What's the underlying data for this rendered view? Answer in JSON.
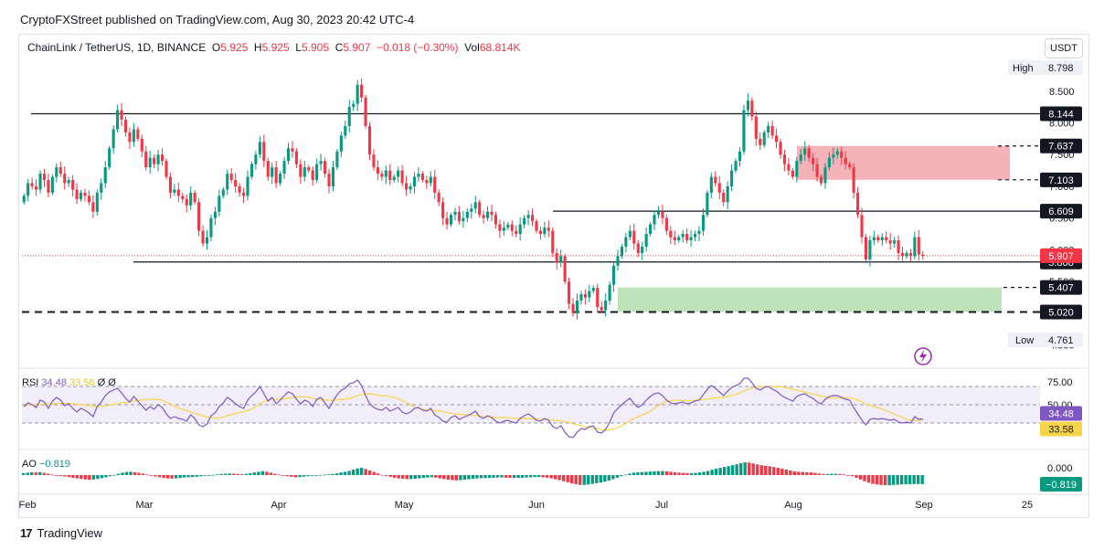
{
  "credit": "CryptoFXStreet published on TradingView.com, Aug 30, 2023 20:42 UTC-4",
  "legend": {
    "symbol": "ChainLink / TetherUS, 1D, BINANCE",
    "o_label": "O",
    "o": "5.925",
    "h_label": "H",
    "h": "5.925",
    "l_label": "L",
    "l": "5.905",
    "c_label": "C",
    "c": "5.907",
    "change": "−0.018 (−0.30%)",
    "vol_label": "Vol",
    "vol": "68.814K"
  },
  "currency": "USDT",
  "rsi_legend": {
    "name": "RSI",
    "v1": "34.48",
    "v2": "33.58",
    "v3": "Ø",
    "v4": "Ø"
  },
  "ao_legend": {
    "name": "AO",
    "v1": "−0.819"
  },
  "branding": "TradingView",
  "colors": {
    "up": "#089981",
    "down": "#f23645",
    "rsi": "#7e57c2",
    "rsi_ma": "#f5d547",
    "resistance_zone": "#f2a6ab",
    "support_zone": "#b7e0b4"
  },
  "chart_data": {
    "type": "candlestick",
    "instrument": "ChainLink / TetherUS",
    "timeframe": "1D",
    "exchange": "BINANCE",
    "price_axis": {
      "ticks": [
        "8.500",
        "8.000",
        "7.500",
        "7.000",
        "6.500",
        "6.000",
        "5.500",
        "5.000",
        "4.500"
      ],
      "high_label": "High",
      "high": "8.798",
      "low_label": "Low",
      "low": "4.761",
      "current": "5.907"
    },
    "x_axis": {
      "ticks": [
        "Feb",
        "Mar",
        "Apr",
        "May",
        "Jun",
        "Jul",
        "Aug",
        "Sep",
        "25"
      ]
    },
    "levels": [
      {
        "value": 8.144,
        "label": "8.144",
        "style": "solid"
      },
      {
        "value": 7.637,
        "label": "7.637",
        "style": "dashed"
      },
      {
        "value": 7.103,
        "label": "7.103",
        "style": "dashed"
      },
      {
        "value": 6.609,
        "label": "6.609",
        "style": "solid"
      },
      {
        "value": 5.808,
        "label": "5.808",
        "style": "solid"
      },
      {
        "value": 5.407,
        "label": "5.407",
        "style": "dashed"
      },
      {
        "value": 5.02,
        "label": "5.020",
        "style": "dashed"
      }
    ],
    "zones": [
      {
        "type": "resistance",
        "from": 7.103,
        "to": 7.637
      },
      {
        "type": "support",
        "from": 5.02,
        "to": 5.407
      }
    ],
    "closes": [
      6.85,
      7.05,
      7.0,
      6.95,
      7.2,
      7.1,
      6.9,
      7.15,
      7.3,
      7.2,
      7.05,
      7.1,
      6.95,
      6.8,
      6.9,
      6.85,
      6.75,
      6.6,
      6.9,
      7.05,
      7.3,
      7.6,
      7.9,
      8.2,
      8.05,
      7.85,
      7.7,
      7.9,
      7.75,
      7.55,
      7.3,
      7.45,
      7.35,
      7.5,
      7.4,
      7.15,
      6.9,
      6.95,
      6.85,
      6.8,
      6.7,
      6.9,
      6.75,
      6.3,
      6.1,
      6.2,
      6.5,
      6.6,
      6.85,
      6.95,
      7.2,
      7.1,
      7.0,
      6.9,
      6.85,
      7.15,
      7.35,
      7.5,
      7.7,
      7.4,
      7.15,
      7.3,
      7.05,
      7.2,
      7.4,
      7.6,
      7.55,
      7.35,
      7.15,
      7.3,
      7.25,
      7.1,
      7.35,
      7.4,
      7.2,
      7.0,
      7.3,
      7.55,
      7.8,
      7.95,
      8.25,
      8.3,
      8.6,
      8.4,
      7.95,
      7.5,
      7.3,
      7.2,
      7.15,
      7.25,
      7.1,
      7.15,
      7.25,
      7.05,
      6.95,
      7.0,
      7.15,
      7.2,
      7.1,
      7.05,
      7.15,
      6.9,
      6.75,
      6.5,
      6.4,
      6.55,
      6.6,
      6.45,
      6.5,
      6.6,
      6.65,
      6.75,
      6.55,
      6.5,
      6.6,
      6.55,
      6.4,
      6.3,
      6.35,
      6.4,
      6.3,
      6.25,
      6.4,
      6.5,
      6.55,
      6.45,
      6.3,
      6.25,
      6.35,
      6.3,
      5.95,
      5.8,
      5.9,
      5.5,
      5.15,
      5.0,
      5.2,
      5.3,
      5.25,
      5.35,
      5.4,
      5.1,
      5.05,
      5.2,
      5.45,
      5.75,
      5.9,
      6.05,
      6.2,
      6.3,
      6.1,
      5.95,
      6.05,
      6.25,
      6.4,
      6.55,
      6.6,
      6.5,
      6.3,
      6.2,
      6.15,
      6.2,
      6.25,
      6.15,
      6.2,
      6.25,
      6.3,
      6.55,
      6.9,
      7.15,
      7.05,
      6.9,
      6.75,
      7.0,
      7.25,
      7.4,
      7.55,
      8.2,
      8.35,
      8.1,
      7.75,
      7.65,
      7.85,
      7.95,
      7.8,
      7.7,
      7.5,
      7.35,
      7.25,
      7.15,
      7.4,
      7.5,
      7.6,
      7.45,
      7.35,
      7.15,
      7.05,
      7.3,
      7.45,
      7.5,
      7.55,
      7.45,
      7.35,
      7.3,
      6.9,
      6.55,
      6.2,
      5.85,
      6.15,
      6.2,
      6.15,
      6.2,
      6.15,
      6.1,
      6.15,
      5.95,
      5.9,
      5.95,
      5.9,
      6.2,
      5.925,
      5.907
    ],
    "rsi": {
      "ticks": [
        "75.00",
        "50.00"
      ],
      "value": "34.48",
      "ma": "33.58",
      "series": [
        48,
        52,
        50,
        47,
        55,
        53,
        46,
        54,
        58,
        55,
        49,
        51,
        46,
        42,
        46,
        44,
        41,
        37,
        48,
        53,
        60,
        64,
        66,
        68,
        63,
        57,
        53,
        59,
        54,
        49,
        44,
        48,
        45,
        50,
        47,
        40,
        35,
        37,
        35,
        34,
        32,
        39,
        35,
        28,
        26,
        29,
        38,
        41,
        48,
        52,
        58,
        55,
        51,
        48,
        46,
        55,
        60,
        64,
        70,
        62,
        54,
        58,
        51,
        55,
        60,
        64,
        62,
        56,
        51,
        55,
        53,
        48,
        56,
        58,
        52,
        46,
        54,
        61,
        66,
        68,
        73,
        74,
        77,
        71,
        60,
        51,
        47,
        45,
        44,
        47,
        43,
        45,
        47,
        42,
        40,
        42,
        46,
        47,
        44,
        43,
        46,
        39,
        36,
        32,
        31,
        36,
        38,
        34,
        36,
        38,
        40,
        43,
        37,
        35,
        38,
        36,
        32,
        30,
        32,
        33,
        31,
        30,
        35,
        38,
        40,
        37,
        33,
        32,
        35,
        33,
        26,
        24,
        27,
        20,
        15,
        14,
        20,
        24,
        23,
        26,
        27,
        20,
        19,
        23,
        31,
        41,
        46,
        50,
        54,
        57,
        51,
        47,
        50,
        55,
        59,
        62,
        63,
        60,
        55,
        52,
        51,
        52,
        53,
        51,
        52,
        54,
        55,
        61,
        67,
        71,
        68,
        64,
        60,
        65,
        69,
        71,
        73,
        79,
        79,
        74,
        68,
        66,
        69,
        70,
        67,
        65,
        61,
        58,
        56,
        54,
        59,
        61,
        62,
        59,
        57,
        53,
        51,
        56,
        59,
        60,
        60,
        58,
        56,
        55,
        47,
        40,
        33,
        28,
        34,
        35,
        34,
        35,
        34,
        33,
        34,
        31,
        30,
        31,
        30,
        37,
        34,
        34.48
      ]
    },
    "ao": {
      "ticks": [
        "0.000"
      ],
      "value": "−0.819",
      "series": [
        0.18,
        0.22,
        0.25,
        0.24,
        0.26,
        0.2,
        0.12,
        0.05,
        -0.02,
        -0.08,
        -0.12,
        -0.18,
        -0.25,
        -0.3,
        -0.35,
        -0.4,
        -0.42,
        -0.4,
        -0.35,
        -0.28,
        -0.2,
        -0.1,
        0.02,
        0.12,
        0.22,
        0.28,
        0.3,
        0.26,
        0.2,
        0.14,
        0.05,
        -0.05,
        -0.12,
        -0.2,
        -0.26,
        -0.3,
        -0.32,
        -0.3,
        -0.26,
        -0.22,
        -0.2,
        -0.18,
        -0.15,
        -0.1,
        -0.06,
        -0.02,
        0.02,
        0.06,
        0.1,
        0.12,
        0.14,
        0.13,
        0.1,
        0.08,
        0.12,
        0.18,
        0.24,
        0.3,
        0.36,
        0.3,
        0.22,
        0.12,
        0.05,
        -0.02,
        -0.1,
        -0.16,
        -0.2,
        -0.18,
        -0.14,
        -0.1,
        -0.06,
        -0.02,
        0.02,
        0.04,
        0.06,
        0.1,
        0.16,
        0.24,
        0.3,
        0.38,
        0.5,
        0.6,
        0.66,
        0.55,
        0.42,
        0.28,
        0.14,
        0.02,
        -0.08,
        -0.16,
        -0.24,
        -0.3,
        -0.34,
        -0.36,
        -0.36,
        -0.34,
        -0.3,
        -0.26,
        -0.22,
        -0.2,
        -0.24,
        -0.3,
        -0.36,
        -0.42,
        -0.46,
        -0.48,
        -0.46,
        -0.42,
        -0.38,
        -0.34,
        -0.3,
        -0.28,
        -0.28,
        -0.26,
        -0.24,
        -0.22,
        -0.22,
        -0.24,
        -0.26,
        -0.26,
        -0.25,
        -0.24,
        -0.22,
        -0.2,
        -0.18,
        -0.17,
        -0.2,
        -0.24,
        -0.3,
        -0.38,
        -0.46,
        -0.56,
        -0.66,
        -0.76,
        -0.84,
        -0.9,
        -0.9,
        -0.86,
        -0.8,
        -0.74,
        -0.68,
        -0.6,
        -0.5,
        -0.38,
        -0.24,
        -0.1,
        0.04,
        0.14,
        0.22,
        0.26,
        0.28,
        0.3,
        0.32,
        0.34,
        0.36,
        0.36,
        0.34,
        0.3,
        0.26,
        0.22,
        0.2,
        0.18,
        0.18,
        0.2,
        0.24,
        0.3,
        0.38,
        0.48,
        0.58,
        0.66,
        0.74,
        0.82,
        0.9,
        0.98,
        1.08,
        1.16,
        1.14,
        1.06,
        0.98,
        0.9,
        0.84,
        0.8,
        0.74,
        0.66,
        0.58,
        0.5,
        0.42,
        0.34,
        0.3,
        0.28,
        0.26,
        0.24,
        0.2,
        0.14,
        0.1,
        0.1,
        0.12,
        0.12,
        0.1,
        0.06,
        0.0,
        -0.1,
        -0.24,
        -0.4,
        -0.56,
        -0.7,
        -0.8,
        -0.86,
        -0.9,
        -0.92,
        -0.92,
        -0.9,
        -0.88,
        -0.86,
        -0.84,
        -0.84,
        -0.82,
        -0.82,
        -0.819
      ]
    }
  }
}
